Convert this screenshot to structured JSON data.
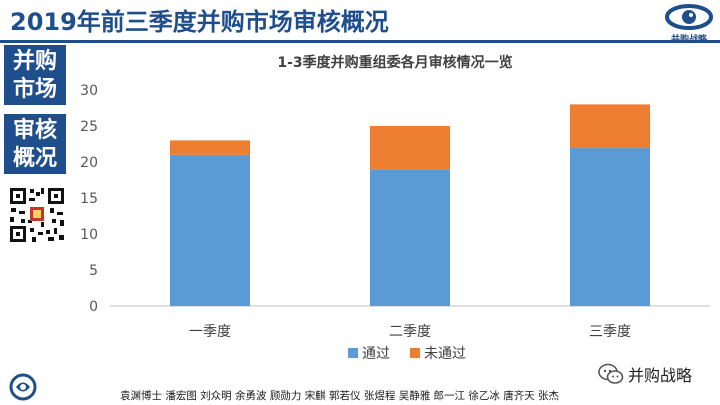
{
  "slide": {
    "title": "2019年前三季度并购市场审核概况",
    "side_a": [
      "并购",
      "市场"
    ],
    "side_b": [
      "审核",
      "概况"
    ],
    "brand": "并购战略",
    "wechat_label": "并购战略",
    "footer_names": "袁渊博士 潘宏图 刘众明 余勇波 顾勋力 宋麒 郭若仪 张煜程 吴静雅 郎一江 徐乙冰 唐齐天 张杰",
    "colors": {
      "primary": "#1f4e8c",
      "pass": "#5b9bd5",
      "fail": "#ed7d31"
    }
  },
  "chart_data": {
    "type": "bar",
    "stacked": true,
    "title": "1-3季度并购重组委各月审核情况一览",
    "categories": [
      "一季度",
      "二季度",
      "三季度"
    ],
    "series": [
      {
        "name": "通过",
        "values": [
          21,
          19,
          22
        ],
        "color": "#5b9bd5"
      },
      {
        "name": "未通过",
        "values": [
          2,
          6,
          6
        ],
        "color": "#ed7d31"
      }
    ],
    "ylim": [
      0,
      30
    ],
    "yticks": [
      0,
      5,
      10,
      15,
      20,
      25,
      30
    ],
    "grid": false,
    "legend": "bottom",
    "xlabel": "",
    "ylabel": ""
  }
}
